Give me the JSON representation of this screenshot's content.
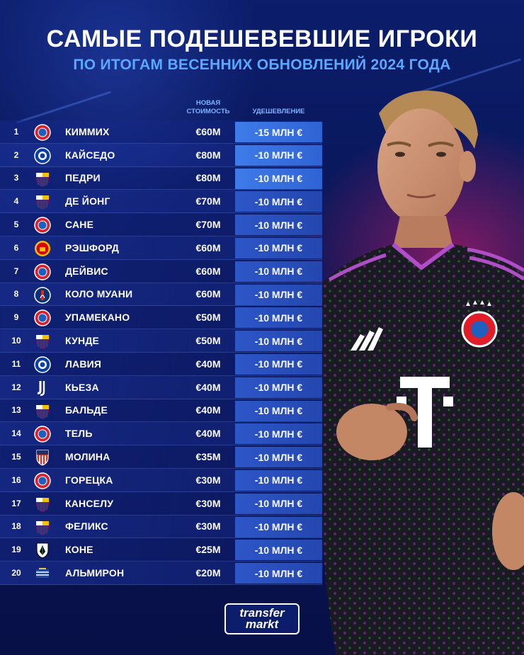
{
  "header": {
    "title": "САМЫЕ ПОДЕШЕВЕВШИЕ ИГРОКИ",
    "subtitle": "ПО ИТОГАМ ВЕСЕННИХ ОБНОВЛЕНИЙ 2024 ГОДА"
  },
  "columns": {
    "value_line1": "НОВАЯ",
    "value_line2": "СТОИМОСТЬ",
    "drop": "УДЕШЕВЛЕНИЕ"
  },
  "rows": [
    {
      "rank": "1",
      "club_icon": "bayern-icon",
      "name": "КИММИХ",
      "value": "€60M",
      "drop": "-15 МЛН €"
    },
    {
      "rank": "2",
      "club_icon": "chelsea-icon",
      "name": "КАЙСЕДО",
      "value": "€80M",
      "drop": "-10 МЛН €"
    },
    {
      "rank": "3",
      "club_icon": "barcelona-icon",
      "name": "ПЕДРИ",
      "value": "€80M",
      "drop": "-10 МЛН €"
    },
    {
      "rank": "4",
      "club_icon": "barcelona-icon",
      "name": "ДЕ ЙОНГ",
      "value": "€70M",
      "drop": "-10 МЛН €"
    },
    {
      "rank": "5",
      "club_icon": "bayern-icon",
      "name": "САНЕ",
      "value": "€70M",
      "drop": "-10 МЛН €"
    },
    {
      "rank": "6",
      "club_icon": "man-united-icon",
      "name": "РЭШФОРД",
      "value": "€60M",
      "drop": "-10 МЛН €"
    },
    {
      "rank": "7",
      "club_icon": "bayern-icon",
      "name": "ДЕЙВИС",
      "value": "€60M",
      "drop": "-10 МЛН €"
    },
    {
      "rank": "8",
      "club_icon": "psg-icon",
      "name": "КОЛО МУАНИ",
      "value": "€60M",
      "drop": "-10 МЛН €"
    },
    {
      "rank": "9",
      "club_icon": "bayern-icon",
      "name": "УПАМЕКАНО",
      "value": "€50M",
      "drop": "-10 МЛН €"
    },
    {
      "rank": "10",
      "club_icon": "barcelona-icon",
      "name": "КУНДЕ",
      "value": "€50M",
      "drop": "-10 МЛН €"
    },
    {
      "rank": "11",
      "club_icon": "chelsea-icon",
      "name": "ЛАВИЯ",
      "value": "€40M",
      "drop": "-10 МЛН €"
    },
    {
      "rank": "12",
      "club_icon": "juventus-icon",
      "name": "КЬЕЗА",
      "value": "€40M",
      "drop": "-10 МЛН €"
    },
    {
      "rank": "13",
      "club_icon": "barcelona-icon",
      "name": "БАЛЬДЕ",
      "value": "€40M",
      "drop": "-10 МЛН €"
    },
    {
      "rank": "14",
      "club_icon": "bayern-icon",
      "name": "ТЕЛЬ",
      "value": "€40M",
      "drop": "-10 МЛН €"
    },
    {
      "rank": "15",
      "club_icon": "atletico-icon",
      "name": "МОЛИНА",
      "value": "€35M",
      "drop": "-10 МЛН €"
    },
    {
      "rank": "16",
      "club_icon": "bayern-icon",
      "name": "ГОРЕЦКА",
      "value": "€30M",
      "drop": "-10 МЛН €"
    },
    {
      "rank": "17",
      "club_icon": "barcelona-icon",
      "name": "КАНСЕЛУ",
      "value": "€30M",
      "drop": "-10 МЛН €"
    },
    {
      "rank": "18",
      "club_icon": "barcelona-icon",
      "name": "ФЕЛИКС",
      "value": "€30M",
      "drop": "-10 МЛН €"
    },
    {
      "rank": "19",
      "club_icon": "gladbach-icon",
      "name": "КОНЕ",
      "value": "€25M",
      "drop": "-10 МЛН €"
    },
    {
      "rank": "20",
      "club_icon": "newcastle-icon",
      "name": "АЛЬМИРОН",
      "value": "€20M",
      "drop": "-10 МЛН €"
    }
  ],
  "brand": {
    "line1": "transfer",
    "line2": "markt"
  },
  "colors": {
    "background": "#0a1656",
    "accent_blue": "#5aa8ff",
    "drop_cell": "#3f7bea"
  }
}
